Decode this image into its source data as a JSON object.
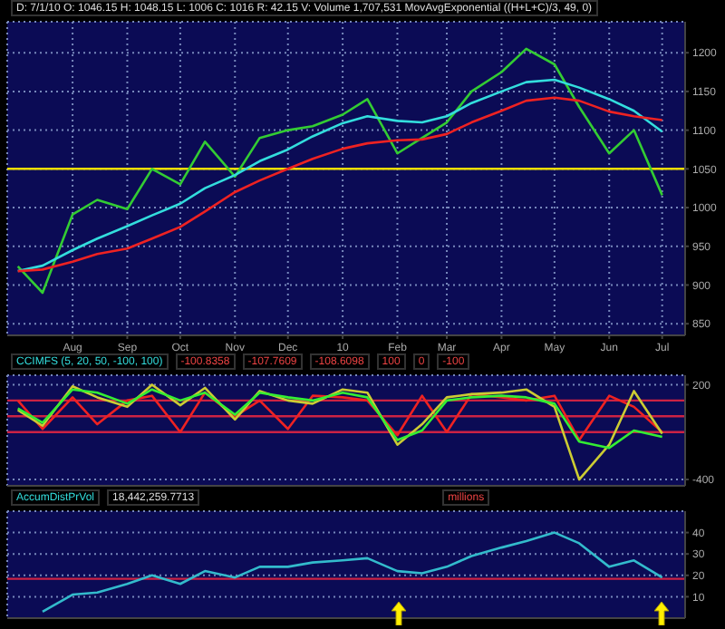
{
  "chart_data": [
    {
      "type": "line",
      "subtitle": "D: 7/1/10  O: 1046.15  H: 1048.15  L: 1006  C: 1016  R: 42.15  V: Volume 1,707,531  MovAvgExponential ((H+L+C)/3, 49, 0)",
      "x": [
        "2009-07-01",
        "2009-07-15",
        "2009-08-01",
        "2009-08-15",
        "2009-09-01",
        "2009-09-15",
        "2009-10-01",
        "2009-10-15",
        "2009-11-01",
        "2009-11-15",
        "2009-12-01",
        "2009-12-15",
        "2010-01-01",
        "2010-01-15",
        "2010-02-01",
        "2010-02-15",
        "2010-03-01",
        "2010-03-15",
        "2010-04-01",
        "2010-04-15",
        "2010-05-01",
        "2010-05-15",
        "2010-06-01",
        "2010-06-15",
        "2010-07-01"
      ],
      "series": [
        {
          "color": "#33cc33",
          "values": [
            924,
            890,
            991,
            1010,
            998,
            1050,
            1030,
            1085,
            1040,
            1090,
            1100,
            1105,
            1120,
            1140,
            1070,
            1090,
            1110,
            1150,
            1175,
            1205,
            1185,
            1130,
            1070,
            1100,
            1016
          ]
        },
        {
          "color": "#33dddd",
          "values": [
            918,
            925,
            945,
            960,
            976,
            990,
            1005,
            1025,
            1042,
            1060,
            1075,
            1092,
            1109,
            1118,
            1112,
            1110,
            1118,
            1135,
            1150,
            1162,
            1165,
            1155,
            1140,
            1125,
            1098
          ]
        },
        {
          "color": "#ee2222",
          "values": [
            918,
            920,
            930,
            940,
            947,
            960,
            975,
            995,
            1020,
            1035,
            1050,
            1063,
            1076,
            1083,
            1087,
            1088,
            1095,
            1110,
            1125,
            1138,
            1142,
            1138,
            1124,
            1118,
            1113
          ]
        }
      ],
      "xlim": [
        "2009-06-25",
        "2010-07-14"
      ],
      "xticks": [
        {
          "value": "2009-08-01",
          "label": "Aug"
        },
        {
          "value": "2009-09-01",
          "label": "Sep"
        },
        {
          "value": "2009-10-01",
          "label": "Oct"
        },
        {
          "value": "2009-11-01",
          "label": "Nov"
        },
        {
          "value": "2009-12-01",
          "label": "Dec"
        },
        {
          "value": "2010-01-01",
          "label": "10"
        },
        {
          "value": "2010-02-01",
          "label": "Feb"
        },
        {
          "value": "2010-03-01",
          "label": "Mar"
        },
        {
          "value": "2010-04-01",
          "label": "Apr"
        },
        {
          "value": "2010-05-01",
          "label": "May"
        },
        {
          "value": "2010-06-01",
          "label": "Jun"
        },
        {
          "value": "2010-07-01",
          "label": "Jul"
        }
      ],
      "ylim": [
        835,
        1240
      ],
      "yticks": [
        850,
        900,
        950,
        1000,
        1050,
        1100,
        1150,
        1200
      ],
      "ref_lines": [
        {
          "axis": "y",
          "value": 1050,
          "color": "#eedd00"
        }
      ],
      "grid": true
    },
    {
      "type": "line",
      "title": "CCIMFS (5, 20, 50, -100, 100)",
      "x": [
        "2009-07-01",
        "2009-07-15",
        "2009-08-01",
        "2009-08-15",
        "2009-09-01",
        "2009-09-15",
        "2009-10-01",
        "2009-10-15",
        "2009-11-01",
        "2009-11-15",
        "2009-12-01",
        "2009-12-15",
        "2010-01-01",
        "2010-01-15",
        "2010-02-01",
        "2010-02-15",
        "2010-03-01",
        "2010-03-15",
        "2010-04-01",
        "2010-04-15",
        "2010-05-01",
        "2010-05-15",
        "2010-06-01",
        "2010-06-15",
        "2010-07-01"
      ],
      "series": [
        {
          "color": "#ee2222",
          "values": [
            100,
            -80,
            120,
            -50,
            100,
            130,
            -100,
            150,
            0,
            100,
            -80,
            130,
            120,
            100,
            -120,
            130,
            -100,
            140,
            120,
            100,
            130,
            -150,
            130,
            60,
            -100
          ]
        },
        {
          "color": "#cccc33",
          "values": [
            40,
            -60,
            190,
            120,
            60,
            200,
            70,
            180,
            -20,
            160,
            100,
            80,
            170,
            150,
            -180,
            -50,
            120,
            140,
            150,
            170,
            60,
            -400,
            -180,
            160,
            -110
          ]
        },
        {
          "color": "#33ee33",
          "values": [
            50,
            -40,
            170,
            150,
            80,
            170,
            100,
            150,
            10,
            150,
            120,
            100,
            150,
            120,
            -150,
            -90,
            100,
            120,
            130,
            120,
            80,
            -160,
            -200,
            -90,
            -130
          ]
        }
      ],
      "xlim": [
        "2009-06-25",
        "2010-07-14"
      ],
      "xticks": [
        {
          "value": "2009-08-01",
          "label": null
        },
        {
          "value": "2009-09-01",
          "label": null
        },
        {
          "value": "2009-10-01",
          "label": null
        },
        {
          "value": "2009-11-01",
          "label": null
        },
        {
          "value": "2009-12-01",
          "label": null
        },
        {
          "value": "2010-01-01",
          "label": null
        },
        {
          "value": "2010-02-01",
          "label": null
        },
        {
          "value": "2010-03-01",
          "label": null
        },
        {
          "value": "2010-04-01",
          "label": null
        },
        {
          "value": "2010-05-01",
          "label": null
        },
        {
          "value": "2010-06-01",
          "label": null
        },
        {
          "value": "2010-07-01",
          "label": null
        }
      ],
      "ylim": [
        -440,
        260
      ],
      "yticks": [
        200,
        -400
      ],
      "ref_lines": [
        {
          "axis": "y",
          "value": 100,
          "color": "#cc2244"
        },
        {
          "axis": "y",
          "value": 0,
          "color": "#cc2244"
        },
        {
          "axis": "y",
          "value": -100,
          "color": "#cc2244"
        }
      ],
      "annotations": [
        "-100.8358",
        "-107.7609",
        "-108.6098",
        "100",
        "0",
        "-100"
      ],
      "tick_labels": "y",
      "grid": true
    },
    {
      "type": "line",
      "title": "AccumDistPrVol",
      "subtitle": "18,442,259.7713",
      "x": [
        "2009-07-15",
        "2009-08-01",
        "2009-08-15",
        "2009-09-01",
        "2009-09-15",
        "2009-10-01",
        "2009-10-15",
        "2009-11-01",
        "2009-11-15",
        "2009-12-01",
        "2009-12-15",
        "2010-01-01",
        "2010-01-15",
        "2010-02-01",
        "2010-02-15",
        "2010-03-01",
        "2010-03-15",
        "2010-04-01",
        "2010-04-15",
        "2010-05-01",
        "2010-05-15",
        "2010-06-01",
        "2010-06-15",
        "2010-07-01"
      ],
      "series": [
        {
          "color": "#33bbcc",
          "values": [
            3,
            11,
            12,
            16,
            20,
            16,
            22,
            19,
            24,
            24,
            26,
            27,
            28,
            22,
            21,
            24,
            29,
            33,
            36,
            40,
            35,
            24,
            27,
            19
          ]
        }
      ],
      "xlim": [
        "2009-06-25",
        "2010-07-14"
      ],
      "xticks": [
        {
          "value": "2009-08-01",
          "label": null
        },
        {
          "value": "2009-09-01",
          "label": null
        },
        {
          "value": "2009-10-01",
          "label": null
        },
        {
          "value": "2009-11-01",
          "label": null
        },
        {
          "value": "2009-12-01",
          "label": null
        },
        {
          "value": "2010-01-01",
          "label": null
        },
        {
          "value": "2010-02-01",
          "label": null
        },
        {
          "value": "2010-03-01",
          "label": null
        },
        {
          "value": "2010-04-01",
          "label": null
        },
        {
          "value": "2010-05-01",
          "label": null
        },
        {
          "value": "2010-06-01",
          "label": null
        },
        {
          "value": "2010-07-01",
          "label": null
        }
      ],
      "ylim": [
        0,
        50
      ],
      "yticks": [
        10,
        20,
        30,
        40
      ],
      "ref_lines": [
        {
          "axis": "y",
          "value": 18.4,
          "color": "#cc2244"
        }
      ],
      "annotations": [
        "millions"
      ],
      "tick_labels": "y",
      "grid": true
    }
  ]
}
